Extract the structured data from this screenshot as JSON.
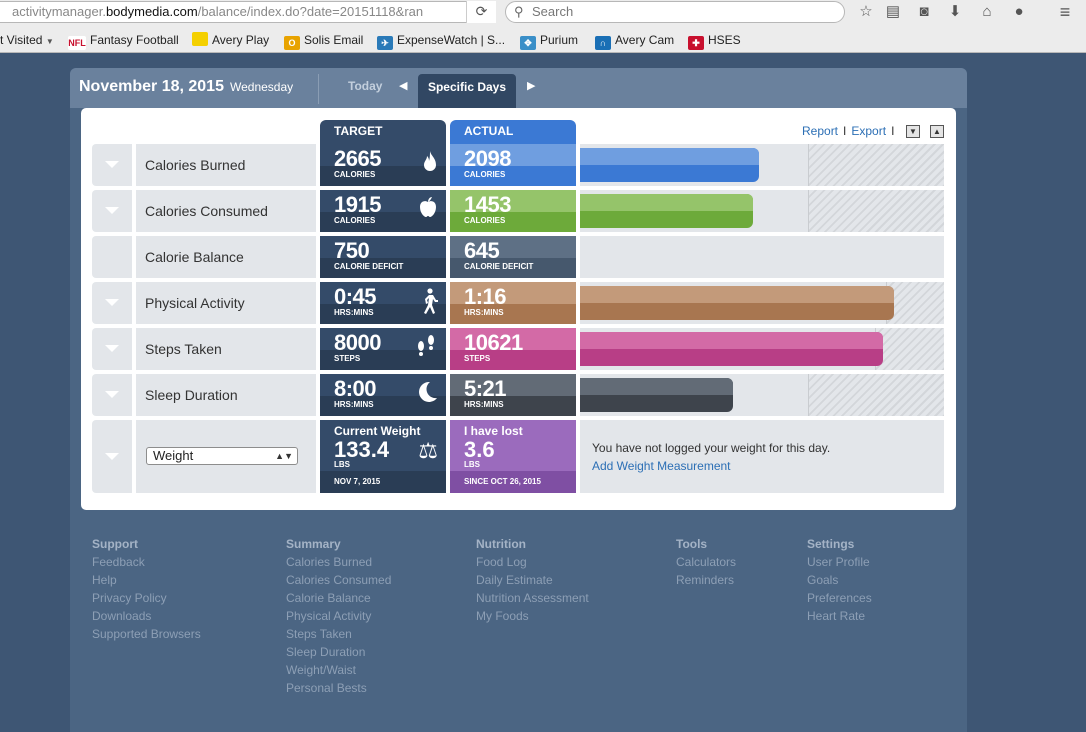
{
  "browser": {
    "url_prefix": "activitymanager.",
    "url_domain": "bodymedia.com",
    "url_path": "/balance/index.do?date=20151118&ran",
    "search_placeholder": "Search",
    "bookmarks": [
      {
        "label": "t Visited",
        "icon": "dropdown-icon"
      },
      {
        "label": "Fantasy Football",
        "icon": "nfl-icon",
        "color": "#c8102e"
      },
      {
        "label": "Avery Play",
        "icon": "yellow-square-icon",
        "color": "#f4d000"
      },
      {
        "label": "Solis Email",
        "icon": "outlook-icon",
        "color": "#e8a300"
      },
      {
        "label": "ExpenseWatch | S...",
        "icon": "bird-icon",
        "color": "#2a7ab8"
      },
      {
        "label": "Purium",
        "icon": "leaf-icon",
        "color": "#3a8fc8"
      },
      {
        "label": "Avery Cam",
        "icon": "camera-icon",
        "color": "#1a6fb5"
      },
      {
        "label": "HSES",
        "icon": "cross-icon",
        "color": "#c8102e"
      }
    ]
  },
  "header": {
    "date": "November 18, 2015",
    "weekday": "Wednesday",
    "today_label": "Today",
    "specific_days_label": "Specific Days"
  },
  "table": {
    "target_header": "TARGET",
    "actual_header": "ACTUAL",
    "report_link": "Report",
    "export_link": "Export",
    "sep": "I",
    "rows": [
      {
        "label": "Calories Burned",
        "target": "2665",
        "target_unit": "CALORIES",
        "target_icon": "flame-icon",
        "actual": "2098",
        "actual_unit": "CALORIES",
        "color_top": "#6f9ee0",
        "color_bottom": "#3b79d4",
        "bar_fraction": 0.787,
        "goal_fraction": 1.0
      },
      {
        "label": "Calories Consumed",
        "target": "1915",
        "target_unit": "CALORIES",
        "target_icon": "apple-icon",
        "actual": "1453",
        "actual_unit": "CALORIES",
        "color_top": "#95c46a",
        "color_bottom": "#6daa3a",
        "bar_fraction": 0.759,
        "goal_fraction": 1.0
      },
      {
        "label": "Calorie Balance",
        "target": "750",
        "target_unit": "CALORIE DEFICIT",
        "target_icon": "",
        "actual": "645",
        "actual_unit": "CALORIE DEFICIT",
        "color_top": "#5e7085",
        "color_bottom": "#46586d",
        "bar_fraction": 0,
        "goal_fraction": 0
      },
      {
        "label": "Physical Activity",
        "target": "0:45",
        "target_unit": "HRS:MINS",
        "target_icon": "walking-icon",
        "actual": "1:16",
        "actual_unit": "HRS:MINS",
        "color_top": "#c39a7a",
        "color_bottom": "#a87650",
        "bar_fraction": 1.689,
        "goal_fraction": 1.0
      },
      {
        "label": "Steps Taken",
        "target": "8000",
        "target_unit": "STEPS",
        "target_icon": "footprints-icon",
        "actual": "10621",
        "actual_unit": "STEPS",
        "color_top": "#d36aa6",
        "color_bottom": "#b83e86",
        "bar_fraction": 1.328,
        "goal_fraction": 1.0
      },
      {
        "label": "Sleep Duration",
        "target": "8:00",
        "target_unit": "HRS:MINS",
        "target_icon": "moon-icon",
        "actual": "5:21",
        "actual_unit": "HRS:MINS",
        "color_top": "#626b76",
        "color_bottom": "#3e444c",
        "bar_fraction": 0.669,
        "goal_fraction": 1.0
      }
    ],
    "weight": {
      "select_value": "Weight",
      "current_title": "Current Weight",
      "current_value": "133.4",
      "current_unit": "LBS",
      "current_date": "NOV 7, 2015",
      "lost_title": "I have lost",
      "lost_value": "3.6",
      "lost_unit": "LBS",
      "lost_since": "SINCE OCT 26, 2015",
      "message": "You have not logged your weight for this day.",
      "add_link": "Add Weight Measurement"
    }
  },
  "footer": [
    {
      "heading": "Support",
      "items": [
        "Feedback",
        "Help",
        "Privacy Policy",
        "Downloads",
        "Supported Browsers"
      ]
    },
    {
      "heading": "Summary",
      "items": [
        "Calories Burned",
        "Calories Consumed",
        "Calorie Balance",
        "Physical Activity",
        "Steps Taken",
        "Sleep Duration",
        "Weight/Waist",
        "Personal Bests"
      ]
    },
    {
      "heading": "Nutrition",
      "items": [
        "Food Log",
        "Daily Estimate",
        "Nutrition Assessment",
        "My Foods"
      ]
    },
    {
      "heading": "Tools",
      "items": [
        "Calculators",
        "Reminders"
      ]
    },
    {
      "heading": "Settings",
      "items": [
        "User Profile",
        "Goals",
        "Preferences",
        "Heart Rate"
      ]
    }
  ]
}
